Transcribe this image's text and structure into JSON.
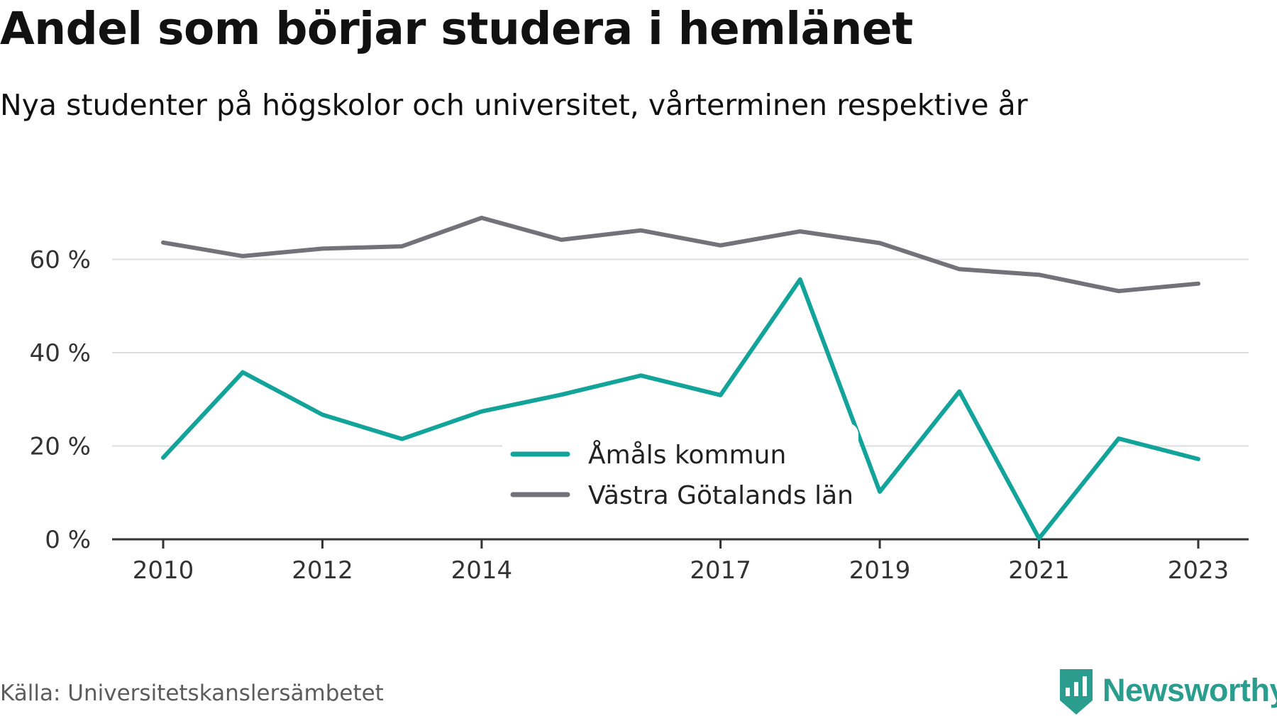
{
  "header": {
    "title": "Andel som börjar studera i hemlänet",
    "subtitle": "Nya studenter på högskolor och universitet, vårterminen respektive år"
  },
  "footer": {
    "source": "Källa: Universitetskanslersämbetet",
    "brand": "Newsworthy",
    "brand_icon": "bar-chart-icon"
  },
  "colors": {
    "series_1": "#12a39a",
    "series_2": "#737279",
    "grid": "#dddddd",
    "axis": "#333333",
    "brand": "#2a9d8f"
  },
  "chart_data": {
    "type": "line",
    "title": "Andel som börjar studera i hemlänet",
    "subtitle": "Nya studenter på högskolor och universitet, vårterminen respektive år",
    "xlabel": "",
    "ylabel": "",
    "x": [
      2010,
      2011,
      2012,
      2013,
      2014,
      2015,
      2016,
      2017,
      2018,
      2019,
      2020,
      2021,
      2022,
      2023
    ],
    "x_tick_labels": [
      "2010",
      "2012",
      "2014",
      "2017",
      "2019",
      "2021",
      "2023"
    ],
    "y_tick_labels": [
      "0 %",
      "20 %",
      "40 %",
      "60 %"
    ],
    "y_ticks": [
      0,
      20,
      40,
      60
    ],
    "ylim": [
      0,
      70
    ],
    "grid": true,
    "legend_position": "center",
    "series": [
      {
        "name": "Åmåls kommun",
        "values": [
          17.5,
          35.8,
          26.7,
          21.5,
          27.4,
          31.0,
          35.1,
          30.9,
          55.7,
          10.2,
          31.7,
          0.2,
          21.6,
          17.2
        ]
      },
      {
        "name": "Västra Götalands län",
        "values": [
          63.6,
          60.7,
          62.3,
          62.8,
          68.9,
          64.2,
          66.2,
          63.0,
          66.0,
          63.5,
          57.9,
          56.7,
          53.2,
          54.8
        ]
      }
    ]
  }
}
